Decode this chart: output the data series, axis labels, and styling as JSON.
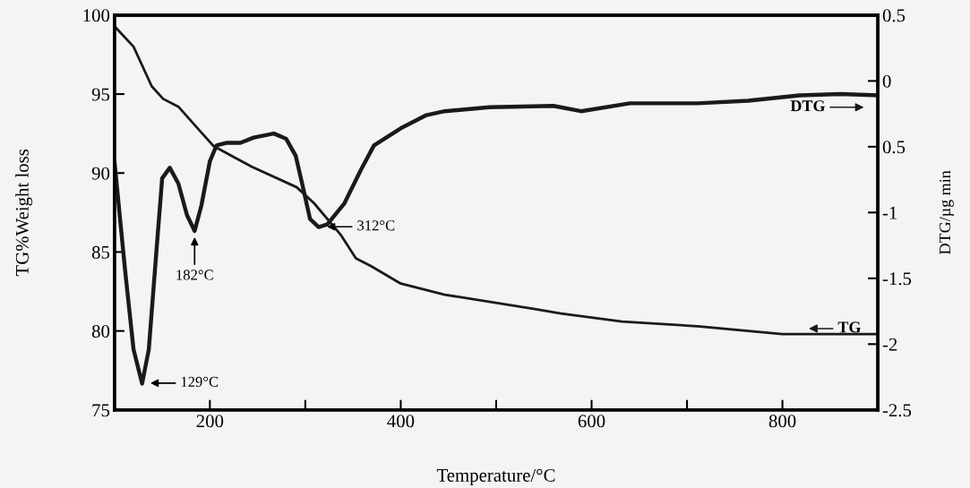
{
  "chart_data": {
    "type": "line",
    "xlabel": "Temperature/°C",
    "ylabel": "TG%Weight loss",
    "y2label": "DTG/µg min",
    "xlim": [
      100,
      900
    ],
    "xticks": [
      200,
      {
        "value": 300,
        "label": null
      },
      400,
      {
        "value": 500,
        "label": null
      },
      600,
      {
        "value": 700,
        "label": null
      },
      800
    ],
    "ylim": [
      75,
      100
    ],
    "yticks": [
      75,
      80,
      85,
      90,
      95,
      100
    ],
    "y2lim": [
      -2.5,
      0.5
    ],
    "y2ticks": [
      -2.5,
      -2,
      -1.5,
      -1,
      {
        "value": -0.5,
        "label": "0.5"
      },
      0,
      0.5
    ],
    "grid": false,
    "legend": "right",
    "marker": "none",
    "line_style": "solid",
    "series": [
      {
        "name": "TG",
        "color": "#1a1a1a",
        "x": [
          100,
          120,
          139,
          151,
          167,
          192,
          204,
          244,
          291,
          309,
          337,
          353,
          369,
          400,
          446,
          539,
          568,
          632,
          711,
          800,
          900
        ],
        "values": [
          99.3,
          98.0,
          95.5,
          94.7,
          94.2,
          92.5,
          91.7,
          90.4,
          89.1,
          88.1,
          86.1,
          84.6,
          84.1,
          83.0,
          82.3,
          81.4,
          81.1,
          80.6,
          80.3,
          79.8,
          79.8
        ]
      },
      {
        "name": "DTG",
        "color": "#1a1a1a",
        "axis": "y2",
        "x": [
          100,
          111,
          120,
          129,
          136,
          144,
          150,
          158,
          167,
          176,
          184,
          191,
          200,
          207,
          218,
          232,
          246,
          267,
          280,
          290,
          297,
          305,
          314,
          323,
          341,
          358,
          372,
          400,
          427,
          446,
          493,
          560,
          589,
          640,
          711,
          764,
          818,
          861,
          900
        ],
        "values": [
          -0.61,
          -1.43,
          -2.04,
          -2.3,
          -2.04,
          -1.29,
          -0.74,
          -0.66,
          -0.78,
          -1.02,
          -1.14,
          -0.95,
          -0.61,
          -0.49,
          -0.47,
          -0.47,
          -0.43,
          -0.4,
          -0.44,
          -0.57,
          -0.79,
          -1.05,
          -1.11,
          -1.09,
          -0.93,
          -0.68,
          -0.49,
          -0.36,
          -0.26,
          -0.23,
          -0.2,
          -0.19,
          -0.23,
          -0.17,
          -0.17,
          -0.15,
          -0.11,
          -0.1,
          -0.11
        ]
      }
    ],
    "annotations": [
      {
        "text": "129°C",
        "x": 129,
        "y": 76.7
      },
      {
        "text": "182°C",
        "x": 184,
        "y": 86.3
      },
      {
        "text": "312°C",
        "x": 314,
        "y": 86.6
      }
    ]
  }
}
